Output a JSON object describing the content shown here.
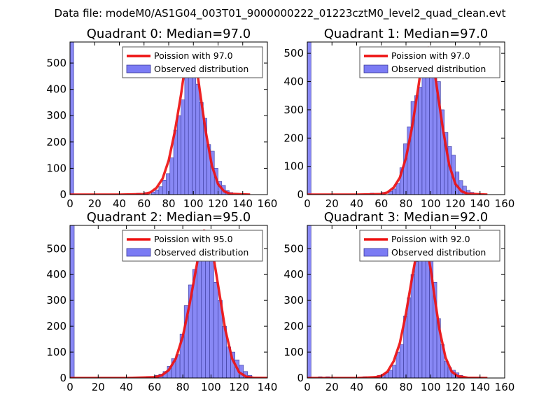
{
  "figure_title": "Data file: modeM0/AS1G04_003T01_9000000222_01223cztM0_level2_quad_clean.evt",
  "colors": {
    "bar_fill": "#7b7bf4",
    "bar_edge": "#3a3a99",
    "poisson_line": "#ee1111",
    "axes": "#000000",
    "legend_edge": "#555555"
  },
  "chart_data": [
    {
      "type": "bar",
      "title": "Quadrant 0: Median=97.0",
      "median": 97.0,
      "xlim": [
        0,
        160
      ],
      "ylim": [
        0,
        580
      ],
      "xticks": [
        "0",
        "20",
        "40",
        "60",
        "80",
        "100",
        "120",
        "140",
        "160"
      ],
      "yticks": [
        "0",
        "100",
        "200",
        "300",
        "400",
        "500"
      ],
      "bin_width": 3,
      "bins": [
        [
          0,
          580
        ],
        [
          54,
          5
        ],
        [
          60,
          8
        ],
        [
          66,
          10
        ],
        [
          69,
          18
        ],
        [
          72,
          30
        ],
        [
          75,
          55
        ],
        [
          78,
          80
        ],
        [
          81,
          140
        ],
        [
          84,
          245
        ],
        [
          87,
          300
        ],
        [
          90,
          360
        ],
        [
          93,
          460
        ],
        [
          96,
          540
        ],
        [
          99,
          480
        ],
        [
          102,
          420
        ],
        [
          105,
          350
        ],
        [
          108,
          290
        ],
        [
          111,
          190
        ],
        [
          114,
          165
        ],
        [
          117,
          100
        ],
        [
          120,
          50
        ],
        [
          123,
          35
        ],
        [
          126,
          15
        ],
        [
          129,
          8
        ]
      ],
      "poisson_curve": [
        [
          0,
          0
        ],
        [
          40,
          0
        ],
        [
          60,
          2
        ],
        [
          65,
          8
        ],
        [
          70,
          25
        ],
        [
          75,
          60
        ],
        [
          80,
          130
        ],
        [
          85,
          240
        ],
        [
          90,
          380
        ],
        [
          93,
          480
        ],
        [
          96,
          550
        ],
        [
          98,
          555
        ],
        [
          100,
          540
        ],
        [
          103,
          470
        ],
        [
          106,
          370
        ],
        [
          110,
          240
        ],
        [
          115,
          110
        ],
        [
          120,
          40
        ],
        [
          125,
          12
        ],
        [
          130,
          3
        ],
        [
          146,
          0
        ]
      ],
      "legend": {
        "line_label": "Poission with 97.0",
        "bar_label": "Observed distribution",
        "placement": "upper-right"
      }
    },
    {
      "type": "bar",
      "title": "Quadrant 1: Median=97.0",
      "median": 97.0,
      "xlim": [
        0,
        160
      ],
      "ylim": [
        0,
        540
      ],
      "xticks": [
        "0",
        "20",
        "40",
        "60",
        "80",
        "100",
        "120",
        "140",
        "160"
      ],
      "yticks": [
        "0",
        "100",
        "200",
        "300",
        "400",
        "500"
      ],
      "bin_width": 3,
      "bins": [
        [
          0,
          540
        ],
        [
          51,
          5
        ],
        [
          60,
          8
        ],
        [
          66,
          12
        ],
        [
          69,
          20
        ],
        [
          72,
          40
        ],
        [
          75,
          95
        ],
        [
          78,
          180
        ],
        [
          81,
          240
        ],
        [
          84,
          330
        ],
        [
          87,
          350
        ],
        [
          90,
          380
        ],
        [
          93,
          440
        ],
        [
          96,
          500
        ],
        [
          99,
          480
        ],
        [
          102,
          430
        ],
        [
          105,
          400
        ],
        [
          108,
          300
        ],
        [
          111,
          220
        ],
        [
          114,
          170
        ],
        [
          117,
          140
        ],
        [
          120,
          80
        ],
        [
          123,
          50
        ],
        [
          126,
          30
        ],
        [
          129,
          15
        ],
        [
          132,
          8
        ]
      ],
      "poisson_curve": [
        [
          0,
          0
        ],
        [
          40,
          0
        ],
        [
          60,
          2
        ],
        [
          65,
          8
        ],
        [
          70,
          25
        ],
        [
          75,
          60
        ],
        [
          80,
          130
        ],
        [
          85,
          240
        ],
        [
          90,
          380
        ],
        [
          93,
          470
        ],
        [
          96,
          515
        ],
        [
          98,
          520
        ],
        [
          100,
          505
        ],
        [
          103,
          440
        ],
        [
          106,
          350
        ],
        [
          110,
          230
        ],
        [
          115,
          105
        ],
        [
          120,
          38
        ],
        [
          125,
          12
        ],
        [
          130,
          3
        ],
        [
          146,
          0
        ]
      ],
      "legend": {
        "line_label": "Poission with 97.0",
        "bar_label": "Observed distribution",
        "placement": "upper-right"
      }
    },
    {
      "type": "bar",
      "title": "Quadrant 2: Median=95.0",
      "median": 95.0,
      "xlim": [
        0,
        140
      ],
      "ylim": [
        0,
        590
      ],
      "xticks": [
        "0",
        "20",
        "40",
        "60",
        "80",
        "100",
        "120",
        "140"
      ],
      "yticks": [
        "0",
        "100",
        "200",
        "300",
        "400",
        "500"
      ],
      "bin_width": 3,
      "bins": [
        [
          0,
          590
        ],
        [
          54,
          5
        ],
        [
          60,
          10
        ],
        [
          63,
          15
        ],
        [
          66,
          25
        ],
        [
          69,
          45
        ],
        [
          72,
          75
        ],
        [
          75,
          90
        ],
        [
          78,
          170
        ],
        [
          81,
          280
        ],
        [
          84,
          360
        ],
        [
          87,
          420
        ],
        [
          90,
          480
        ],
        [
          93,
          560
        ],
        [
          96,
          530
        ],
        [
          99,
          500
        ],
        [
          102,
          370
        ],
        [
          105,
          300
        ],
        [
          108,
          200
        ],
        [
          111,
          120
        ],
        [
          114,
          100
        ],
        [
          117,
          70
        ],
        [
          120,
          50
        ],
        [
          123,
          25
        ],
        [
          126,
          10
        ]
      ],
      "poisson_curve": [
        [
          0,
          0
        ],
        [
          40,
          0
        ],
        [
          60,
          3
        ],
        [
          65,
          10
        ],
        [
          70,
          30
        ],
        [
          75,
          75
        ],
        [
          80,
          160
        ],
        [
          85,
          290
        ],
        [
          90,
          440
        ],
        [
          93,
          540
        ],
        [
          95,
          570
        ],
        [
          97,
          565
        ],
        [
          99,
          540
        ],
        [
          102,
          460
        ],
        [
          105,
          360
        ],
        [
          110,
          190
        ],
        [
          115,
          75
        ],
        [
          120,
          22
        ],
        [
          125,
          5
        ],
        [
          130,
          1
        ],
        [
          146,
          0
        ]
      ],
      "legend": {
        "line_label": "Poission with 95.0",
        "bar_label": "Observed distribution",
        "placement": "upper-right"
      }
    },
    {
      "type": "bar",
      "title": "Quadrant 3: Median=92.0",
      "median": 92.0,
      "xlim": [
        0,
        160
      ],
      "ylim": [
        0,
        590
      ],
      "xticks": [
        "0",
        "20",
        "40",
        "60",
        "80",
        "100",
        "120",
        "140",
        "160"
      ],
      "yticks": [
        "0",
        "100",
        "200",
        "300",
        "400",
        "500"
      ],
      "bin_width": 3,
      "bins": [
        [
          0,
          590
        ],
        [
          9,
          5
        ],
        [
          15,
          5
        ],
        [
          45,
          5
        ],
        [
          54,
          5
        ],
        [
          57,
          10
        ],
        [
          60,
          15
        ],
        [
          63,
          20
        ],
        [
          66,
          30
        ],
        [
          69,
          50
        ],
        [
          72,
          100
        ],
        [
          75,
          130
        ],
        [
          78,
          240
        ],
        [
          81,
          310
        ],
        [
          84,
          400
        ],
        [
          87,
          450
        ],
        [
          90,
          560
        ],
        [
          93,
          560
        ],
        [
          96,
          500
        ],
        [
          99,
          460
        ],
        [
          102,
          370
        ],
        [
          105,
          230
        ],
        [
          108,
          130
        ],
        [
          111,
          65
        ],
        [
          114,
          40
        ],
        [
          117,
          30
        ],
        [
          120,
          20
        ],
        [
          123,
          10
        ]
      ],
      "poisson_curve": [
        [
          0,
          0
        ],
        [
          40,
          0
        ],
        [
          55,
          3
        ],
        [
          60,
          8
        ],
        [
          65,
          25
        ],
        [
          70,
          65
        ],
        [
          75,
          135
        ],
        [
          80,
          250
        ],
        [
          85,
          390
        ],
        [
          90,
          520
        ],
        [
          92,
          555
        ],
        [
          94,
          550
        ],
        [
          97,
          500
        ],
        [
          100,
          420
        ],
        [
          103,
          320
        ],
        [
          107,
          190
        ],
        [
          112,
          80
        ],
        [
          117,
          25
        ],
        [
          122,
          7
        ],
        [
          130,
          1
        ],
        [
          146,
          0
        ]
      ],
      "legend": {
        "line_label": "Poission with 92.0",
        "bar_label": "Observed distribution",
        "placement": "upper-right"
      }
    }
  ]
}
